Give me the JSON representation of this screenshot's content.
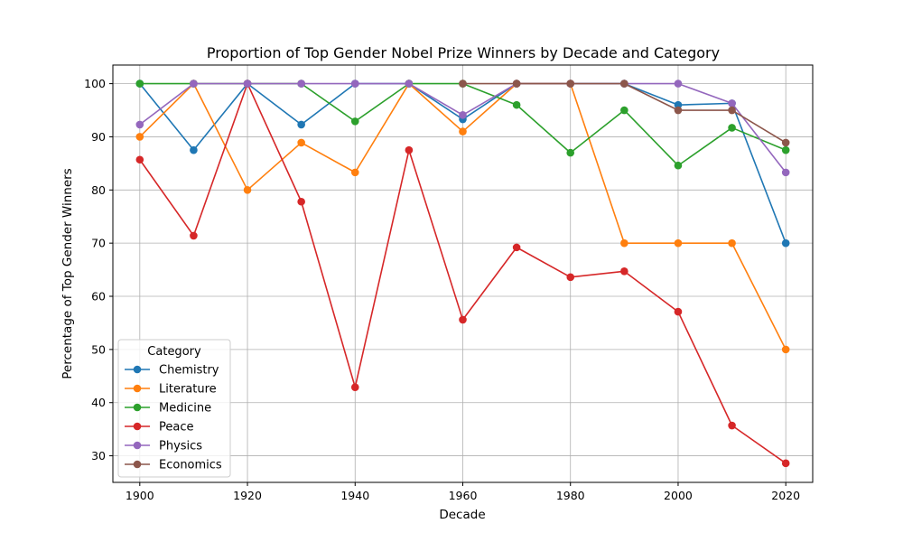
{
  "chart_data": {
    "type": "line",
    "title": "Proportion of Top Gender Nobel Prize Winners by Decade and Category",
    "xlabel": "Decade",
    "ylabel": "Percentage of Top Gender Winners",
    "x": [
      1900,
      1910,
      1920,
      1930,
      1940,
      1950,
      1960,
      1970,
      1980,
      1990,
      2000,
      2010,
      2020
    ],
    "xlim": [
      1895,
      2025
    ],
    "ylim": [
      25,
      103.5
    ],
    "xticks": [
      1900,
      1920,
      1940,
      1960,
      1980,
      2000,
      2020
    ],
    "yticks": [
      30,
      40,
      50,
      60,
      70,
      80,
      90,
      100
    ],
    "grid": true,
    "legend": {
      "title": "Category",
      "placement": "lower-left"
    },
    "series": [
      {
        "name": "Chemistry",
        "color": "#1f77b4",
        "x": [
          1900,
          1910,
          1920,
          1930,
          1940,
          1950,
          1960,
          1970,
          1980,
          1990,
          2000,
          2010,
          2020
        ],
        "values": [
          100,
          87.5,
          100,
          92.3,
          100,
          100,
          93.3,
          100,
          100,
          100,
          96.0,
          96.3,
          70.0
        ]
      },
      {
        "name": "Literature",
        "color": "#ff7f0e",
        "x": [
          1900,
          1910,
          1920,
          1930,
          1940,
          1950,
          1960,
          1970,
          1980,
          1990,
          2000,
          2010,
          2020
        ],
        "values": [
          90.0,
          100,
          80.0,
          88.9,
          83.3,
          100,
          91.0,
          100,
          100,
          70.0,
          70.0,
          70.0,
          50.0
        ]
      },
      {
        "name": "Medicine",
        "color": "#2ca02c",
        "x": [
          1900,
          1910,
          1920,
          1930,
          1940,
          1950,
          1960,
          1970,
          1980,
          1990,
          2000,
          2010,
          2020
        ],
        "values": [
          100,
          100,
          100,
          100,
          92.9,
          100,
          100,
          96.0,
          87.0,
          95.0,
          84.6,
          91.7,
          87.5
        ]
      },
      {
        "name": "Peace",
        "color": "#d62728",
        "x": [
          1900,
          1910,
          1920,
          1930,
          1940,
          1950,
          1960,
          1970,
          1980,
          1990,
          2000,
          2010,
          2020
        ],
        "values": [
          85.7,
          71.4,
          100,
          77.8,
          42.9,
          87.5,
          55.6,
          69.2,
          63.6,
          64.7,
          57.1,
          35.7,
          28.6
        ]
      },
      {
        "name": "Physics",
        "color": "#9467bd",
        "x": [
          1900,
          1910,
          1920,
          1930,
          1940,
          1950,
          1960,
          1970,
          1980,
          1990,
          2000,
          2010,
          2020
        ],
        "values": [
          92.3,
          100,
          100,
          100,
          100,
          100,
          94.1,
          100,
          100,
          100,
          100,
          96.3,
          83.3
        ]
      },
      {
        "name": "Economics",
        "color": "#8c564b",
        "x": [
          1960,
          1970,
          1980,
          1990,
          2000,
          2010,
          2020
        ],
        "values": [
          100,
          100,
          100,
          100,
          95.0,
          95.0,
          88.9
        ]
      }
    ]
  }
}
